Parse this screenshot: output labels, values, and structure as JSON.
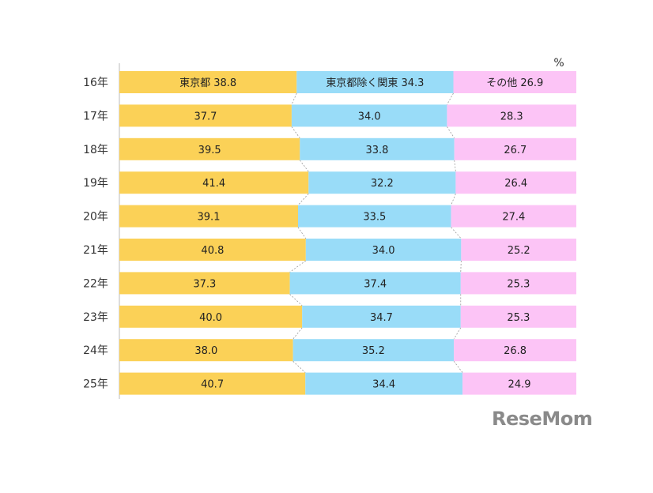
{
  "chart_data": {
    "type": "bar",
    "orientation": "horizontal",
    "stacked": true,
    "unit": "%",
    "categories": [
      "16年",
      "17年",
      "18年",
      "19年",
      "20年",
      "21年",
      "22年",
      "23年",
      "24年",
      "25年"
    ],
    "series": [
      {
        "name": "東京都",
        "values": [
          38.8,
          37.7,
          39.5,
          41.4,
          39.1,
          40.8,
          37.3,
          40.0,
          38.0,
          40.7
        ]
      },
      {
        "name": "東京都除く関東",
        "values": [
          34.3,
          34.0,
          33.8,
          32.2,
          33.5,
          34.0,
          37.4,
          34.7,
          35.2,
          34.4
        ]
      },
      {
        "name": "その他",
        "values": [
          26.9,
          28.3,
          26.7,
          26.4,
          27.4,
          25.2,
          25.3,
          25.3,
          26.8,
          24.9
        ]
      }
    ],
    "colors": [
      "#fbd157",
      "#99dcf8",
      "#fcc4f6"
    ],
    "xlim": [
      0,
      100
    ],
    "legend": "inline-first-row"
  },
  "watermark": "ReseMom"
}
